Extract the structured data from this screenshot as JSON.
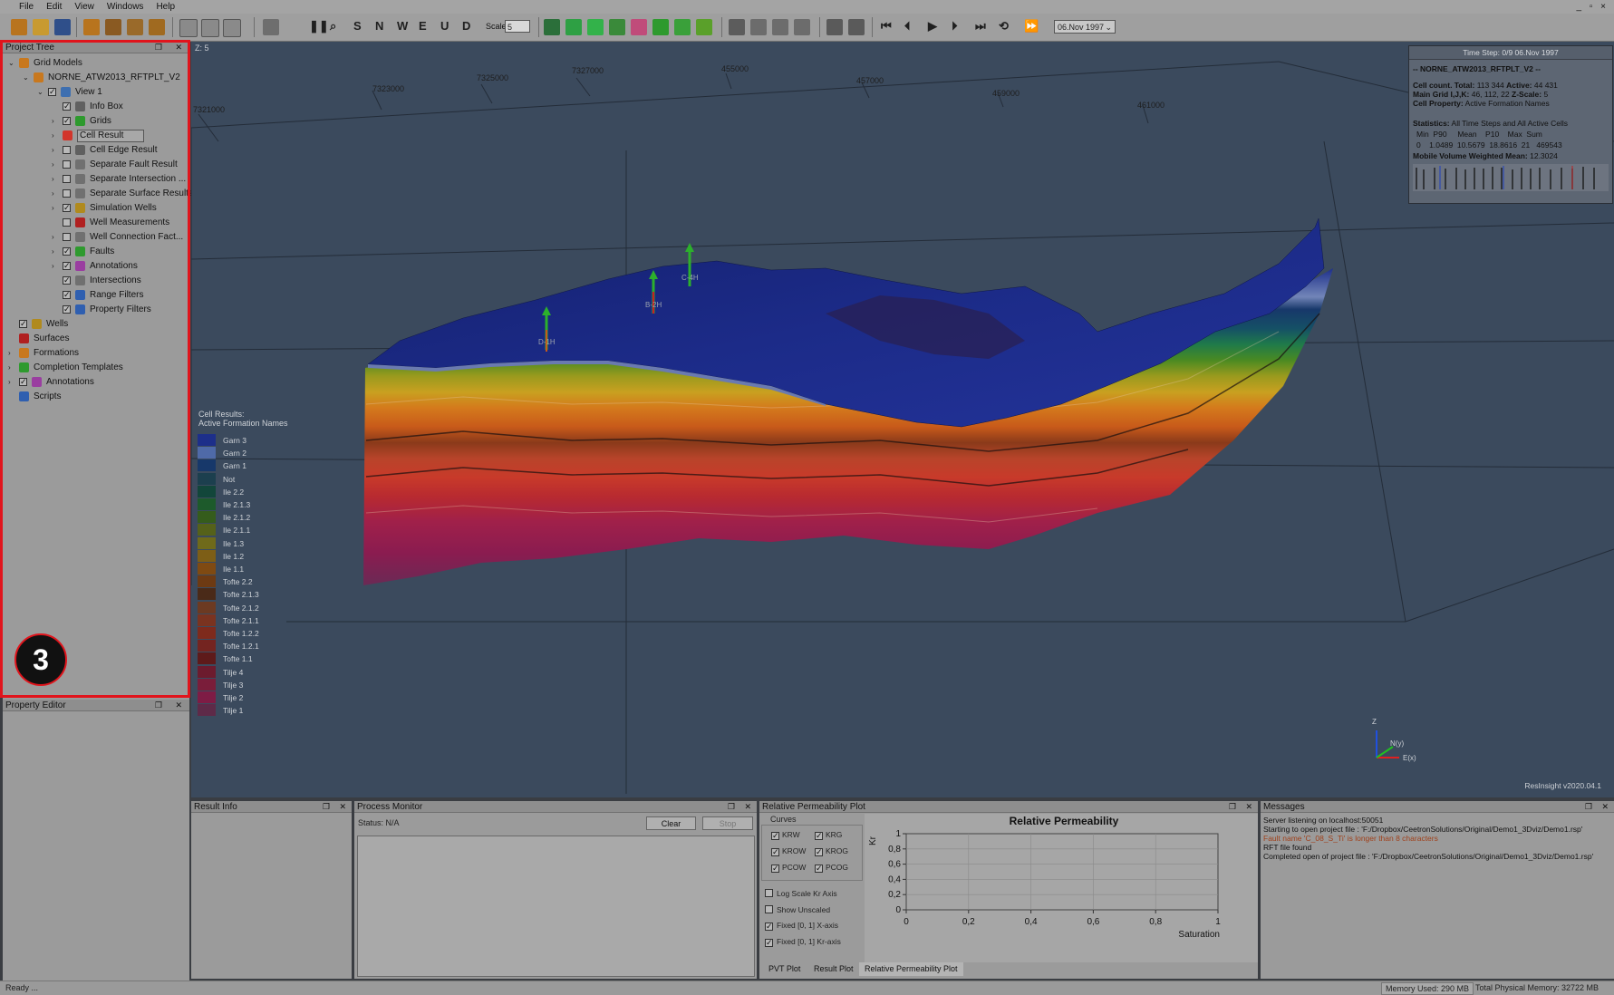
{
  "menu": {
    "items": [
      "File",
      "Edit",
      "View",
      "Windows",
      "Help"
    ],
    "window_controls": "_ ▫ ×"
  },
  "toolbar": {
    "scale_label": "Scale",
    "scale_value": "5",
    "date_value": "06.Nov 1997",
    "view_letters": [
      "S",
      "N",
      "W",
      "E",
      "U",
      "D"
    ]
  },
  "project_tree": {
    "title": "Project Tree",
    "items": [
      {
        "label": "Grid Models",
        "level": 0,
        "expand": "v",
        "check": null,
        "icon": "grid-models-icon",
        "color": "#c8781e"
      },
      {
        "label": "NORNE_ATW2013_RFTPLT_V2",
        "level": 1,
        "expand": "v",
        "check": null,
        "icon": "case-icon",
        "color": "#c8781e"
      },
      {
        "label": "View 1",
        "level": 2,
        "expand": "v",
        "check": true,
        "icon": "view-icon",
        "color": "#3e6fb0"
      },
      {
        "label": "Info Box",
        "level": 3,
        "expand": "",
        "check": true,
        "icon": "info-box-icon",
        "color": "#606060"
      },
      {
        "label": "Grids",
        "level": 3,
        "expand": ">",
        "check": true,
        "icon": "grids-icon",
        "color": "#2e9a2e"
      },
      {
        "label": "Cell Result",
        "level": 3,
        "expand": ">",
        "check": null,
        "icon": "cell-result-icon",
        "color": "#d2352b"
      },
      {
        "label": "Cell Edge Result",
        "level": 3,
        "expand": ">",
        "check": false,
        "icon": "cell-edge-icon",
        "color": "#606060"
      },
      {
        "label": "Separate Fault Result",
        "level": 3,
        "expand": ">",
        "check": false,
        "icon": "fault-result-icon",
        "color": "#707070"
      },
      {
        "label": "Separate Intersection ...",
        "level": 3,
        "expand": ">",
        "check": false,
        "icon": "intersection-result-icon",
        "color": "#707070"
      },
      {
        "label": "Separate Surface Results",
        "level": 3,
        "expand": ">",
        "check": false,
        "icon": "surface-result-icon",
        "color": "#707070"
      },
      {
        "label": "Simulation Wells",
        "level": 3,
        "expand": ">",
        "check": true,
        "icon": "simulation-wells-icon",
        "color": "#b08a1e"
      },
      {
        "label": "Well Measurements",
        "level": 3,
        "expand": "",
        "check": false,
        "icon": "well-measurements-icon",
        "color": "#b02020"
      },
      {
        "label": "Well Connection Fact...",
        "level": 3,
        "expand": ">",
        "check": false,
        "icon": "well-connection-icon",
        "color": "#707070"
      },
      {
        "label": "Faults",
        "level": 3,
        "expand": ">",
        "check": true,
        "icon": "faults-icon",
        "color": "#2e9a2e"
      },
      {
        "label": "Annotations",
        "level": 3,
        "expand": ">",
        "check": true,
        "icon": "annotations-icon",
        "color": "#9a3ea0"
      },
      {
        "label": "Intersections",
        "level": 3,
        "expand": "",
        "check": true,
        "icon": "intersections-icon",
        "color": "#707070"
      },
      {
        "label": "Range Filters",
        "level": 3,
        "expand": "",
        "check": true,
        "icon": "range-filter-icon",
        "color": "#2f5fb0"
      },
      {
        "label": "Property Filters",
        "level": 3,
        "expand": "",
        "check": true,
        "icon": "property-filter-icon",
        "color": "#2f5fb0"
      },
      {
        "label": "Wells",
        "level": 0,
        "expand": "",
        "check": true,
        "icon": "wells-icon",
        "color": "#b08a1e"
      },
      {
        "label": "Surfaces",
        "level": 0,
        "expand": "",
        "check": null,
        "icon": "surfaces-icon",
        "color": "#b02020"
      },
      {
        "label": "Formations",
        "level": 0,
        "expand": ">",
        "check": null,
        "icon": "formations-icon",
        "color": "#c8781e"
      },
      {
        "label": "Completion Templates",
        "level": 0,
        "expand": ">",
        "check": null,
        "icon": "completion-templates-icon",
        "color": "#2e9a2e"
      },
      {
        "label": "Annotations",
        "level": 0,
        "expand": ">",
        "check": true,
        "icon": "annotations-icon",
        "color": "#9a3ea0"
      },
      {
        "label": "Scripts",
        "level": 0,
        "expand": "",
        "check": null,
        "icon": "scripts-icon",
        "color": "#2f5fb0"
      }
    ]
  },
  "annotation_badge": "3",
  "property_editor": {
    "title": "Property Editor"
  },
  "viewport": {
    "z_label": "Z: 5",
    "axis_ticks": [
      "7321000",
      "7323000",
      "7325000",
      "7327000",
      "455000",
      "457000",
      "459000",
      "461000"
    ],
    "well_labels": [
      "D-1H",
      "B-2H",
      "C-4H"
    ],
    "axis_labels": {
      "z": "Z",
      "y": "N(y)",
      "x": "E(x)"
    },
    "version": "ResInsight v2020.04.1"
  },
  "info_box": {
    "time_step": "Time Step: 0/9 06.Nov 1997",
    "case_name": "-- NORNE_ATW2013_RFTPLT_V2 --",
    "cell_count_label": "Cell count. Total:",
    "cell_count_total": "113 344",
    "active_label": "Active:",
    "active_value": "44 431",
    "main_grid_label": "Main Grid I,J,K:",
    "main_grid_value": "46, 112, 22",
    "zscale_label": "Z-Scale:",
    "zscale_value": "5",
    "cell_property_label": "Cell Property:",
    "cell_property_value": "Active Formation Names",
    "statistics_label": "Statistics:",
    "statistics_value": "All Time Steps and All Active Cells",
    "stat_headers": "Min  P90     Mean    P10    Max  Sum",
    "stat_values": "0    1.0489  10.5679  18.8616  21   469543",
    "mobile_label": "Mobile Volume Weighted Mean:",
    "mobile_value": "12.3024"
  },
  "legend": {
    "title_line1": "Cell Results:",
    "title_line2": "Active Formation Names",
    "entries": [
      {
        "name": "Garn 3",
        "color": "#1d2f8a"
      },
      {
        "name": "Garn 2",
        "color": "#4f6aa8"
      },
      {
        "name": "Garn 1",
        "color": "#17386a"
      },
      {
        "name": "Not",
        "color": "#1c3f4e"
      },
      {
        "name": "Ile 2.2",
        "color": "#12463a"
      },
      {
        "name": "Ile 2.1.3",
        "color": "#1d5a2b"
      },
      {
        "name": "Ile 2.1.2",
        "color": "#355c1c"
      },
      {
        "name": "Ile 2.1.1",
        "color": "#55611a"
      },
      {
        "name": "Ile 1.3",
        "color": "#6f6a1a"
      },
      {
        "name": "Ile 1.2",
        "color": "#7d5e16"
      },
      {
        "name": "Ile 1.1",
        "color": "#7f4a12"
      },
      {
        "name": "Tofte 2.2",
        "color": "#6d3a13"
      },
      {
        "name": "Tofte 2.1.3",
        "color": "#4a2a18"
      },
      {
        "name": "Tofte 2.1.2",
        "color": "#6c3a22"
      },
      {
        "name": "Tofte 2.1.1",
        "color": "#7a3320"
      },
      {
        "name": "Tofte 1.2.2",
        "color": "#7e2a1c"
      },
      {
        "name": "Tofte 1.2.1",
        "color": "#742420"
      },
      {
        "name": "Tofte 1.1",
        "color": "#5e1a1a"
      },
      {
        "name": "Tilje 4",
        "color": "#6c1b2e"
      },
      {
        "name": "Tilje 3",
        "color": "#7a1d3a"
      },
      {
        "name": "Tilje 2",
        "color": "#7e1c45"
      },
      {
        "name": "Tilje 1",
        "color": "#5e2a48"
      }
    ]
  },
  "result_info": {
    "title": "Result Info"
  },
  "process_monitor": {
    "title": "Process Monitor",
    "status_label": "Status:",
    "status_value": "N/A",
    "clear_label": "Clear",
    "stop_label": "Stop"
  },
  "relperm": {
    "title": "Relative Permeability Plot",
    "curves_label": "Curves",
    "curves": [
      {
        "label": "KRW",
        "checked": true
      },
      {
        "label": "KRG",
        "checked": true
      },
      {
        "label": "KROW",
        "checked": true
      },
      {
        "label": "KROG",
        "checked": true
      },
      {
        "label": "PCOW",
        "checked": true
      },
      {
        "label": "PCOG",
        "checked": true
      }
    ],
    "options": [
      {
        "label": "Log Scale Kr Axis",
        "checked": false
      },
      {
        "label": "Show Unscaled",
        "checked": false
      },
      {
        "label": "Fixed [0, 1] X-axis",
        "checked": true
      },
      {
        "label": "Fixed [0, 1] Kr-axis",
        "checked": true
      }
    ],
    "tabs": [
      "PVT Plot",
      "Result Plot",
      "Relative Permeability Plot"
    ]
  },
  "chart_data": {
    "type": "line",
    "title": "Relative Permeability",
    "xlabel": "Saturation",
    "ylabel": "Kr",
    "xlim": [
      0,
      1
    ],
    "ylim": [
      0,
      1
    ],
    "x_ticks": [
      "0",
      "0,2",
      "0,4",
      "0,6",
      "0,8",
      "1"
    ],
    "y_ticks": [
      "0",
      "0,2",
      "0,4",
      "0,6",
      "0,8",
      "1"
    ],
    "series": [],
    "grid": true
  },
  "messages": {
    "title": "Messages",
    "lines": [
      {
        "text": "Server listening on localhost:50051",
        "color": "#111111"
      },
      {
        "text": "Starting to open project file : 'F:/Dropbox/CeetronSolutions/Original/Demo1_3Dviz/Demo1.rsp'",
        "color": "#111111"
      },
      {
        "text": "Fault name 'C_08_S_Ti' is longer than 8 characters",
        "color": "#a0401a"
      },
      {
        "text": "RFT file found",
        "color": "#111111"
      },
      {
        "text": "Completed open of project file : 'F:/Dropbox/CeetronSolutions/Original/Demo1_3Dviz/Demo1.rsp'",
        "color": "#111111"
      }
    ]
  },
  "statusbar": {
    "ready": "Ready ...",
    "memory_used": "Memory Used: 290 MB",
    "total_memory": "Total Physical Memory: 32722 MB"
  }
}
